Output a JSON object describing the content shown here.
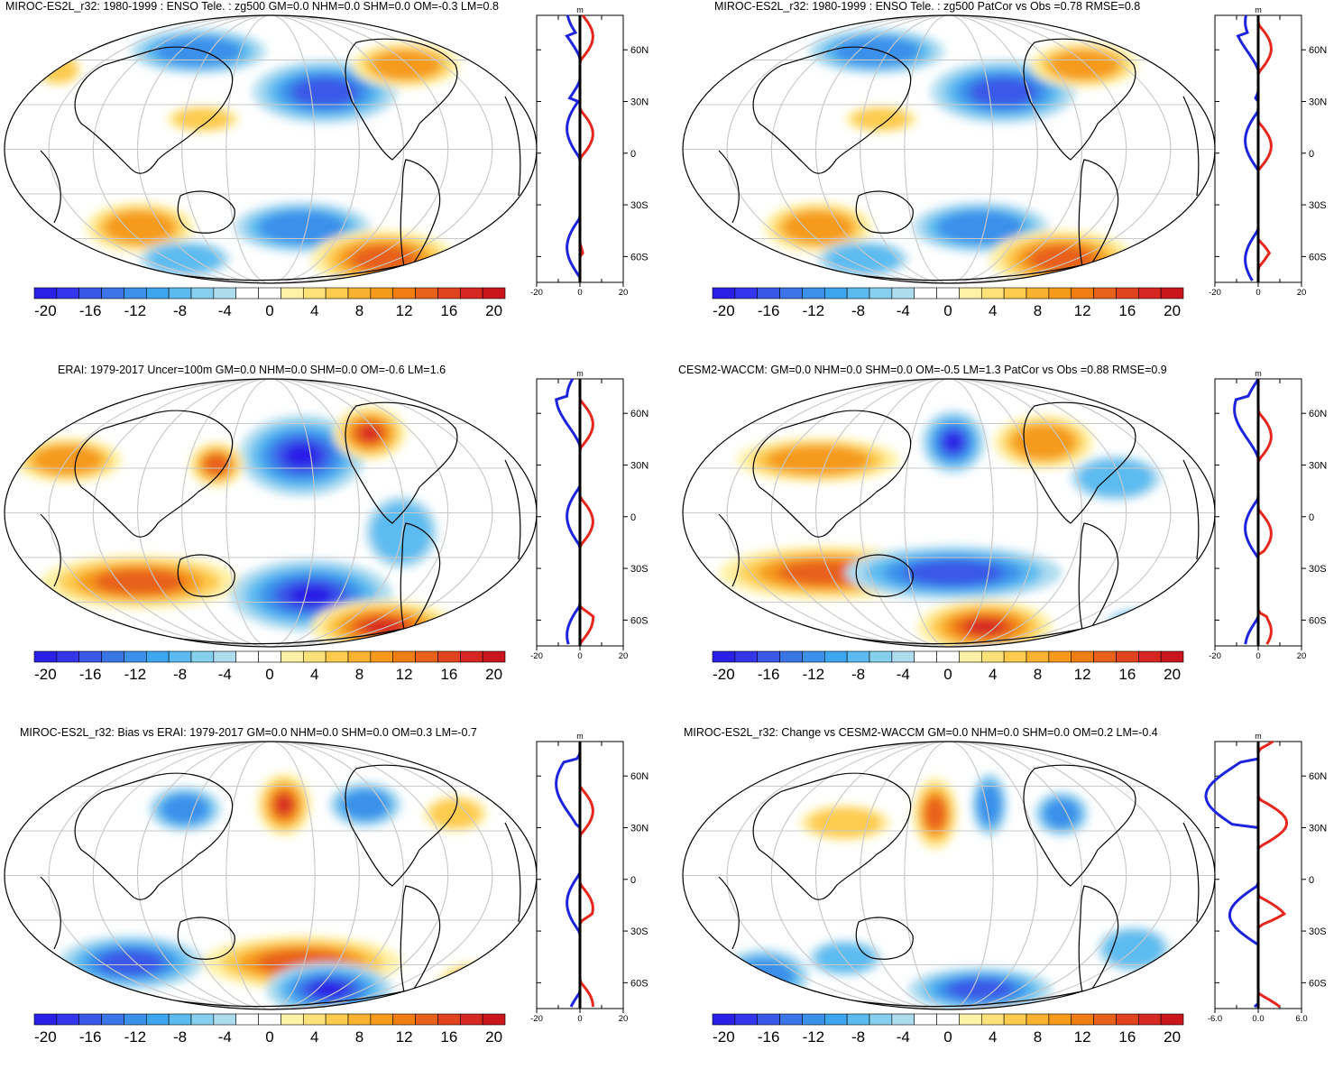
{
  "figure": {
    "cbar_labels": [
      "-20",
      "-16",
      "-12",
      "-8",
      "-4",
      "0",
      "4",
      "8",
      "12",
      "16",
      "20"
    ],
    "cbar_colors": [
      "#2a1fe6",
      "#3436ee",
      "#3a58e8",
      "#3c75e8",
      "#3b90ea",
      "#3ea6ee",
      "#5bbbf0",
      "#86cfef",
      "#aedcef",
      "#ffffff",
      "#ffffff",
      "#fff1a6",
      "#ffe17a",
      "#fdcb4d",
      "#f9b130",
      "#f59a1a",
      "#ef7d12",
      "#e8611b",
      "#e0431e",
      "#d72723",
      "#c8161c"
    ],
    "lat_labels": [
      "60N",
      "30N",
      "0",
      "30S",
      "60S"
    ],
    "zonal_unit": "m",
    "colors": {
      "positive": "#e8261c",
      "negative": "#1d24e0",
      "total": "#000000"
    }
  },
  "panels": [
    {
      "id": "miroc-clim",
      "title": "MIROC-ES2L_r32: 1980-1999 : ENSO Tele. : zg500 GM=0.0 NHM=0.0 SHM=0.0 OM=-0.3 LM=0.8",
      "xticks": [
        "-20",
        "0",
        "20"
      ]
    },
    {
      "id": "miroc-vs-obs",
      "title": "MIROC-ES2L_r32: 1980-1999 : ENSO Tele. : zg500 PatCor vs Obs =0.78 RMSE=0.8",
      "xticks": [
        "-20",
        "0",
        "20"
      ]
    },
    {
      "id": "erai",
      "title": "ERAI: 1979-2017 Uncer=100m GM=0.0 NHM=0.0 SHM=0.0 OM=-0.6 LM=1.6",
      "xticks": [
        "-20",
        "0",
        "20"
      ]
    },
    {
      "id": "cesm2",
      "title": "CESM2-WACCM: GM=0.0 NHM=0.0 SHM=0.0 OM=-0.5 LM=1.3 PatCor vs Obs =0.88 RMSE=0.9",
      "xticks": [
        "-20",
        "0",
        "20"
      ]
    },
    {
      "id": "bias",
      "title": "MIROC-ES2L_r32: Bias vs ERAI: 1979-2017 GM=0.0 NHM=0.0 SHM=0.0 OM=0.3 LM=-0.7",
      "xticks": [
        "-20",
        "0",
        "20"
      ]
    },
    {
      "id": "change",
      "title": "MIROC-ES2L_r32: Change vs CESM2-WACCM GM=0.0 NHM=0.0 SHM=0.0 OM=0.2 LM=-0.4",
      "xticks": [
        "-6.0",
        "0.0",
        "6.0"
      ]
    }
  ]
}
